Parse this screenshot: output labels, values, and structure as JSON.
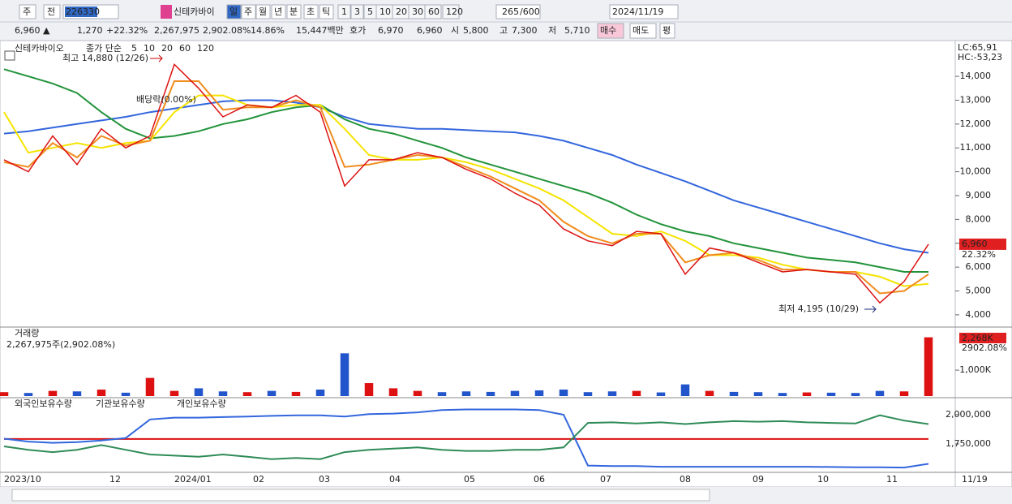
{
  "toolbar": {
    "market": "주",
    "prev": "전",
    "code": "226330",
    "name": "신테카바이",
    "periods": [
      "일",
      "주",
      "월",
      "년",
      "분",
      "초",
      "틱"
    ],
    "counts": [
      "1",
      "3",
      "5",
      "10",
      "20",
      "30",
      "60",
      "120"
    ],
    "bar_count": "265",
    "bar_max": "/600",
    "date": "2024/11/19"
  },
  "quote": {
    "items": [
      "6,960 ▲",
      "1,270",
      "+22.32%",
      "2,267,975",
      "2,902.08%",
      "14.86%",
      "15,447백만",
      "호가",
      "6,970",
      "6,960",
      "시",
      "5,800",
      "고",
      "7,300",
      "저",
      "5,710"
    ],
    "buttons": [
      "매수",
      "매도",
      "평"
    ]
  },
  "price_panel": {
    "type": "line",
    "title": "신테카바이오",
    "legend_label": "종가 단순",
    "lc": "LC:65,91",
    "hc": "HC:-53,23",
    "annotations": {
      "high": "최고 14,880 (12/26)",
      "low": "최저 4,195 (10/29)",
      "dividend": "배당락(0.00%)"
    },
    "last_price": "6,960",
    "last_change": "22.32%",
    "ylim": [
      3520,
      15330
    ],
    "yticks": [
      {
        "value": 4000,
        "label": "4,000"
      },
      {
        "value": 5000,
        "label": "5,000"
      },
      {
        "value": 6000,
        "label": "6,000"
      },
      {
        "value": 7000,
        "label": "7,000"
      },
      {
        "value": 8000,
        "label": "8,000"
      },
      {
        "value": 9000,
        "label": "9,000"
      },
      {
        "value": 10000,
        "label": "10,000"
      },
      {
        "value": 11000,
        "label": "11,000"
      },
      {
        "value": 12000,
        "label": "12,000"
      },
      {
        "value": 13000,
        "label": "13,000"
      },
      {
        "value": 14000,
        "label": "14,000"
      }
    ],
    "series": [
      {
        "name": "120",
        "color": "#3366dd",
        "values": [
          11600,
          11700,
          11850,
          12000,
          12150,
          12300,
          12500,
          12650,
          12800,
          12950,
          13000,
          13000,
          12900,
          12700,
          12300,
          12000,
          11900,
          11800,
          11800,
          11750,
          11700,
          11650,
          11500,
          11300,
          11000,
          10700,
          10300,
          9950,
          9600,
          9200,
          8800,
          8500,
          8200,
          7900,
          7600,
          7300,
          7000,
          6750,
          6600
        ]
      },
      {
        "name": "60",
        "color": "#22933a",
        "values": [
          14300,
          14000,
          13700,
          13300,
          12500,
          11800,
          11400,
          11500,
          11700,
          12000,
          12200,
          12500,
          12700,
          12800,
          12200,
          11800,
          11600,
          11300,
          11000,
          10600,
          10300,
          10000,
          9700,
          9400,
          9100,
          8700,
          8200,
          7800,
          7500,
          7300,
          7000,
          6800,
          6600,
          6400,
          6300,
          6200,
          6000,
          5800,
          5800
        ]
      },
      {
        "name": "20",
        "color": "#f5e400",
        "values": [
          12500,
          10800,
          11000,
          11200,
          11000,
          11200,
          11300,
          12500,
          13200,
          13200,
          12800,
          12700,
          12800,
          12800,
          11800,
          10700,
          10500,
          10500,
          10600,
          10400,
          10100,
          9700,
          9300,
          8800,
          8100,
          7400,
          7300,
          7500,
          7100,
          6500,
          6500,
          6400,
          6100,
          5900,
          5800,
          5800,
          5600,
          5200,
          5300
        ]
      },
      {
        "name": "10",
        "color": "#f08c1e",
        "values": [
          10400,
          10200,
          11200,
          10600,
          11500,
          11100,
          11300,
          13800,
          13800,
          12600,
          12700,
          12700,
          13000,
          12700,
          10200,
          10300,
          10500,
          10700,
          10600,
          10200,
          9800,
          9300,
          8800,
          7900,
          7300,
          7000,
          7400,
          7400,
          6200,
          6500,
          6600,
          6300,
          5900,
          5900,
          5800,
          5800,
          4900,
          5000,
          5700
        ]
      },
      {
        "name": "5",
        "color": "#dd1111",
        "values": [
          10500,
          10000,
          11500,
          10300,
          11800,
          11000,
          11500,
          14500,
          13500,
          12300,
          12800,
          12700,
          13200,
          12500,
          9400,
          10500,
          10500,
          10800,
          10600,
          10100,
          9700,
          9100,
          8600,
          7600,
          7100,
          6900,
          7500,
          7400,
          5700,
          6800,
          6600,
          6200,
          5800,
          5900,
          5800,
          5700,
          4500,
          5400,
          6960
        ]
      }
    ]
  },
  "volume_panel": {
    "type": "bar",
    "title": "거래량",
    "info": "2,267,975주(2,902.08%)",
    "last_volume": "2,268K",
    "last_pct": "2902.08%",
    "ylim": [
      0,
      2600
    ],
    "yticks": [
      {
        "value": 1000,
        "label": "1,000K"
      }
    ],
    "values": [
      150,
      120,
      200,
      180,
      250,
      130,
      700,
      200,
      300,
      180,
      150,
      200,
      160,
      250,
      1650,
      500,
      300,
      200,
      150,
      180,
      160,
      200,
      220,
      250,
      150,
      180,
      200,
      140,
      450,
      200,
      160,
      150,
      120,
      140,
      130,
      120,
      200,
      180,
      2268
    ]
  },
  "holdings_panel": {
    "type": "line",
    "ylim": [
      1486000,
      2132000
    ],
    "yticks": [
      {
        "value": 1750000,
        "label": "1,750,000"
      },
      {
        "value": 2000000,
        "label": "2,000,000"
      }
    ],
    "series": [
      {
        "name": "외국인보유수량",
        "color": "#dd1111",
        "values": [
          1792000,
          1792000,
          1792000,
          1792000,
          1792000,
          1792000,
          1792000,
          1792000,
          1792000,
          1792000,
          1792000,
          1792000,
          1792000,
          1792000,
          1792000,
          1792000,
          1792000,
          1792000,
          1792000,
          1792000,
          1792000,
          1792000,
          1792000,
          1792000,
          1792000,
          1792000,
          1792000,
          1792000,
          1792000,
          1792000,
          1792000,
          1792000,
          1792000,
          1792000,
          1792000,
          1792000,
          1792000,
          1792000,
          1792000
        ]
      },
      {
        "name": "기관보유수량",
        "color": "#3366dd",
        "values": [
          1795000,
          1770000,
          1760000,
          1765000,
          1780000,
          1800000,
          1960000,
          1975000,
          1975000,
          1980000,
          1985000,
          1990000,
          1995000,
          1995000,
          1985000,
          2005000,
          2010000,
          2020000,
          2040000,
          2045000,
          2045000,
          2045000,
          2040000,
          2000000,
          1565000,
          1560000,
          1560000,
          1555000,
          1555000,
          1555000,
          1555000,
          1555000,
          1555000,
          1555000,
          1553000,
          1550000,
          1550000,
          1548000,
          1580000
        ]
      },
      {
        "name": "개인보유수량",
        "color": "#2e8b57",
        "values": [
          1729000,
          1700000,
          1680000,
          1700000,
          1740000,
          1700000,
          1660000,
          1650000,
          1640000,
          1660000,
          1640000,
          1620000,
          1630000,
          1620000,
          1680000,
          1700000,
          1710000,
          1720000,
          1700000,
          1690000,
          1690000,
          1700000,
          1700000,
          1720000,
          1930000,
          1935000,
          1925000,
          1935000,
          1920000,
          1935000,
          1945000,
          1940000,
          1945000,
          1935000,
          1930000,
          1925000,
          1995000,
          1950000,
          1920000
        ]
      }
    ]
  },
  "x_axis": [
    "2023/10",
    "12",
    "2024/01",
    "02",
    "03",
    "04",
    "05",
    "06",
    "07",
    "08",
    "09",
    "10",
    "11",
    "11/19"
  ]
}
